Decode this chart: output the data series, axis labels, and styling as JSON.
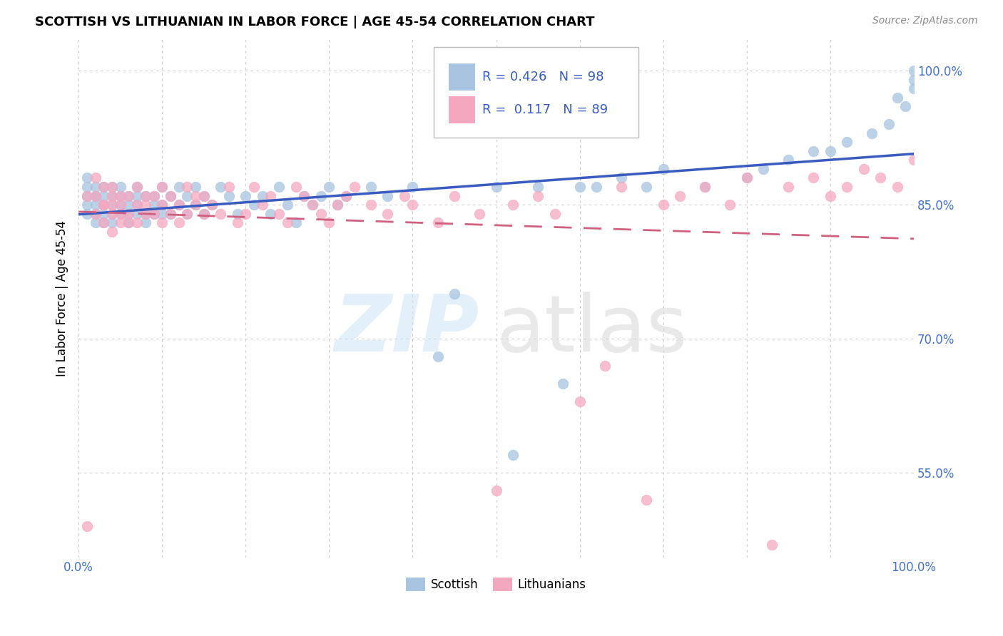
{
  "title": "SCOTTISH VS LITHUANIAN IN LABOR FORCE | AGE 45-54 CORRELATION CHART",
  "source": "Source: ZipAtlas.com",
  "ylabel": "In Labor Force | Age 45-54",
  "xlim": [
    0.0,
    1.0
  ],
  "ylim": [
    0.455,
    1.035
  ],
  "x_ticks": [
    0.0,
    0.1,
    0.2,
    0.3,
    0.4,
    0.5,
    0.6,
    0.7,
    0.8,
    0.9,
    1.0
  ],
  "y_ticks": [
    0.55,
    0.7,
    0.85,
    1.0
  ],
  "y_tick_labels": [
    "55.0%",
    "70.0%",
    "85.0%",
    "100.0%"
  ],
  "scottish_color": "#a8c4e0",
  "lithuanian_color": "#f4a8c0",
  "scottish_R": 0.426,
  "scottish_N": 98,
  "lithuanian_R": 0.117,
  "lithuanian_N": 89,
  "scottish_line_color": "#3a5bbf",
  "lithuanian_line_color": "#d06080",
  "scottish_x": [
    0.01,
    0.01,
    0.01,
    0.01,
    0.01,
    0.02,
    0.02,
    0.02,
    0.02,
    0.02,
    0.02,
    0.03,
    0.03,
    0.03,
    0.03,
    0.03,
    0.03,
    0.04,
    0.04,
    0.04,
    0.04,
    0.04,
    0.05,
    0.05,
    0.05,
    0.05,
    0.06,
    0.06,
    0.06,
    0.06,
    0.07,
    0.07,
    0.07,
    0.07,
    0.08,
    0.08,
    0.08,
    0.09,
    0.09,
    0.09,
    0.1,
    0.1,
    0.1,
    0.11,
    0.11,
    0.12,
    0.12,
    0.13,
    0.13,
    0.14,
    0.14,
    0.15,
    0.15,
    0.16,
    0.17,
    0.18,
    0.19,
    0.2,
    0.21,
    0.22,
    0.23,
    0.24,
    0.25,
    0.26,
    0.27,
    0.28,
    0.29,
    0.3,
    0.31,
    0.32,
    0.35,
    0.37,
    0.4,
    0.43,
    0.45,
    0.5,
    0.52,
    0.55,
    0.58,
    0.6,
    0.62,
    0.65,
    0.68,
    0.7,
    0.75,
    0.8,
    0.82,
    0.85,
    0.88,
    0.9,
    0.92,
    0.95,
    0.97,
    0.98,
    0.99,
    1.0,
    1.0,
    1.0
  ],
  "scottish_y": [
    0.86,
    0.87,
    0.85,
    0.84,
    0.88,
    0.85,
    0.86,
    0.84,
    0.87,
    0.83,
    0.86,
    0.85,
    0.87,
    0.84,
    0.86,
    0.83,
    0.85,
    0.86,
    0.84,
    0.87,
    0.85,
    0.83,
    0.86,
    0.84,
    0.87,
    0.85,
    0.84,
    0.86,
    0.83,
    0.85,
    0.86,
    0.84,
    0.87,
    0.85,
    0.84,
    0.86,
    0.83,
    0.85,
    0.86,
    0.84,
    0.85,
    0.84,
    0.87,
    0.86,
    0.84,
    0.85,
    0.87,
    0.84,
    0.86,
    0.85,
    0.87,
    0.86,
    0.84,
    0.85,
    0.87,
    0.86,
    0.84,
    0.86,
    0.85,
    0.86,
    0.84,
    0.87,
    0.85,
    0.83,
    0.86,
    0.85,
    0.86,
    0.87,
    0.85,
    0.86,
    0.87,
    0.86,
    0.87,
    0.68,
    0.75,
    0.87,
    0.57,
    0.87,
    0.65,
    0.87,
    0.87,
    0.88,
    0.87,
    0.89,
    0.87,
    0.88,
    0.89,
    0.9,
    0.91,
    0.91,
    0.92,
    0.93,
    0.94,
    0.97,
    0.96,
    0.99,
    0.98,
    1.0
  ],
  "lithuanian_x": [
    0.01,
    0.01,
    0.02,
    0.02,
    0.02,
    0.03,
    0.03,
    0.03,
    0.03,
    0.04,
    0.04,
    0.04,
    0.04,
    0.04,
    0.05,
    0.05,
    0.05,
    0.05,
    0.06,
    0.06,
    0.06,
    0.07,
    0.07,
    0.07,
    0.08,
    0.08,
    0.08,
    0.09,
    0.09,
    0.1,
    0.1,
    0.1,
    0.11,
    0.11,
    0.12,
    0.12,
    0.13,
    0.13,
    0.14,
    0.14,
    0.15,
    0.15,
    0.16,
    0.17,
    0.18,
    0.19,
    0.2,
    0.21,
    0.22,
    0.23,
    0.24,
    0.25,
    0.26,
    0.27,
    0.28,
    0.29,
    0.3,
    0.31,
    0.32,
    0.33,
    0.35,
    0.37,
    0.39,
    0.4,
    0.43,
    0.45,
    0.48,
    0.5,
    0.52,
    0.55,
    0.57,
    0.6,
    0.63,
    0.65,
    0.68,
    0.7,
    0.72,
    0.75,
    0.78,
    0.8,
    0.83,
    0.85,
    0.88,
    0.9,
    0.92,
    0.94,
    0.96,
    0.98,
    1.0
  ],
  "lithuanian_y": [
    0.49,
    0.86,
    0.88,
    0.84,
    0.86,
    0.85,
    0.83,
    0.87,
    0.85,
    0.84,
    0.86,
    0.82,
    0.85,
    0.87,
    0.83,
    0.86,
    0.84,
    0.85,
    0.83,
    0.86,
    0.84,
    0.85,
    0.87,
    0.83,
    0.86,
    0.84,
    0.85,
    0.84,
    0.86,
    0.83,
    0.85,
    0.87,
    0.84,
    0.86,
    0.83,
    0.85,
    0.87,
    0.84,
    0.86,
    0.85,
    0.84,
    0.86,
    0.85,
    0.84,
    0.87,
    0.83,
    0.84,
    0.87,
    0.85,
    0.86,
    0.84,
    0.83,
    0.87,
    0.86,
    0.85,
    0.84,
    0.83,
    0.85,
    0.86,
    0.87,
    0.85,
    0.84,
    0.86,
    0.85,
    0.83,
    0.86,
    0.84,
    0.53,
    0.85,
    0.86,
    0.84,
    0.63,
    0.67,
    0.87,
    0.52,
    0.85,
    0.86,
    0.87,
    0.85,
    0.88,
    0.47,
    0.87,
    0.88,
    0.86,
    0.87,
    0.89,
    0.88,
    0.87,
    0.9
  ]
}
